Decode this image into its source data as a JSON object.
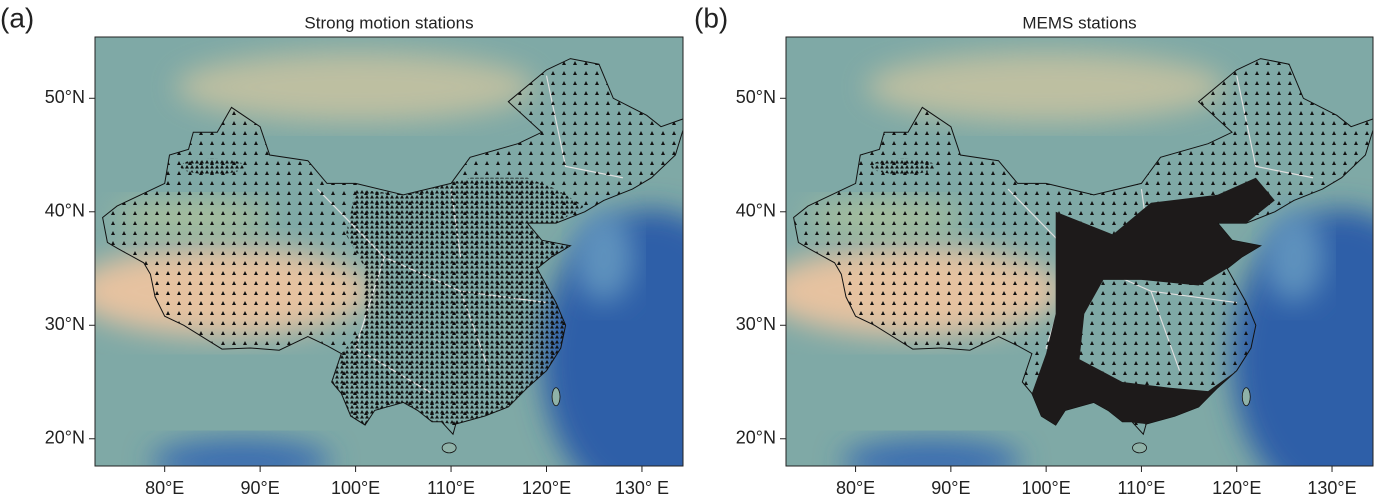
{
  "panels": [
    {
      "label": "(a)",
      "title": "Strong motion stations",
      "xlim": [
        72.7,
        134.3
      ],
      "ylim": [
        17.6,
        55.4
      ],
      "xticks": [
        {
          "value": 80,
          "label": "80°E"
        },
        {
          "value": 90,
          "label": "90°E"
        },
        {
          "value": 100,
          "label": "100°E"
        },
        {
          "value": 110,
          "label": "110°E"
        },
        {
          "value": 120,
          "label": "120°E"
        },
        {
          "value": 130,
          "label": "130° E"
        }
      ],
      "yticks": [
        {
          "value": 50,
          "label": "50°N"
        },
        {
          "value": 40,
          "label": "40°N"
        },
        {
          "value": 30,
          "label": "30°N"
        },
        {
          "value": 20,
          "label": "20°N"
        }
      ]
    },
    {
      "label": "(b)",
      "title": "MEMS stations",
      "xlim": [
        72.7,
        134.3
      ],
      "ylim": [
        17.6,
        55.4
      ],
      "xticks": [
        {
          "value": 80,
          "label": "80°E"
        },
        {
          "value": 90,
          "label": "90°E"
        },
        {
          "value": 100,
          "label": "100°E"
        },
        {
          "value": 110,
          "label": "110°E"
        },
        {
          "value": 120,
          "label": "120°E"
        },
        {
          "value": 130,
          "label": "130°E"
        }
      ],
      "yticks": [
        {
          "value": 50,
          "label": "50°N"
        },
        {
          "value": 40,
          "label": "40°N"
        },
        {
          "value": 30,
          "label": "30°N"
        },
        {
          "value": 20,
          "label": "20°N"
        }
      ]
    }
  ]
}
